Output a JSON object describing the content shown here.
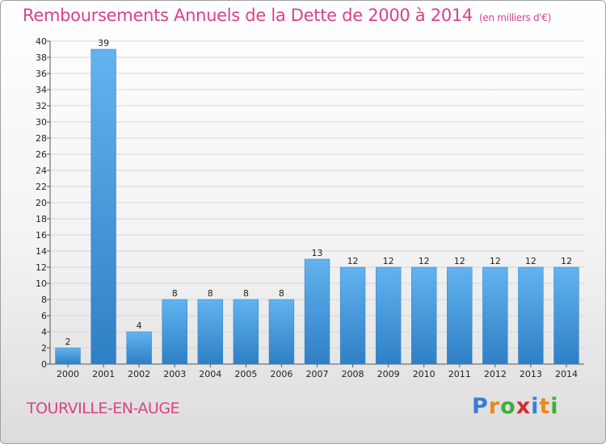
{
  "chart_data": {
    "type": "bar",
    "title": "Remboursements Annuels de la Dette de 2000 à 2014",
    "unit": "(en milliers d'€)",
    "categories": [
      "2000",
      "2001",
      "2002",
      "2003",
      "2004",
      "2005",
      "2006",
      "2007",
      "2008",
      "2009",
      "2010",
      "2011",
      "2012",
      "2013",
      "2014"
    ],
    "values": [
      2,
      39,
      4,
      8,
      8,
      8,
      8,
      13,
      12,
      12,
      12,
      12,
      12,
      12,
      12
    ],
    "value_labels": [
      "2",
      "39",
      "4",
      "8",
      "8",
      "8",
      "8",
      "13",
      "12",
      "12",
      "12",
      "12",
      "12",
      "12",
      "12"
    ],
    "ylim": [
      0,
      40
    ],
    "yticks": [
      0,
      2,
      4,
      6,
      8,
      10,
      12,
      14,
      16,
      18,
      20,
      22,
      24,
      26,
      28,
      30,
      32,
      34,
      36,
      38,
      40
    ],
    "grid": true,
    "bar_color": "#4a9fe0"
  },
  "footer": {
    "town": "TOURVILLE-EN-AUGE",
    "logo": {
      "p": "P",
      "r": "r",
      "o": "o",
      "x": "x",
      "i1": "i",
      "t": "t",
      "i2": "i"
    }
  }
}
